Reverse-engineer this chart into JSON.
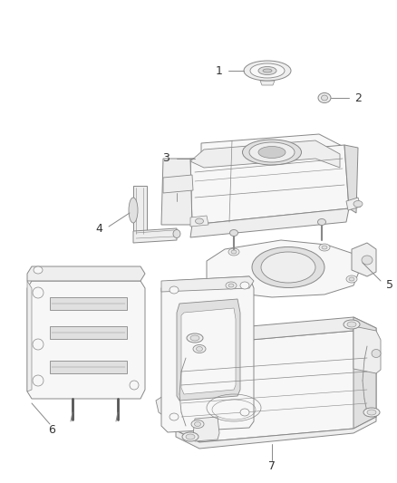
{
  "background_color": "#ffffff",
  "line_color": "#888888",
  "dark_line": "#555555",
  "label_color": "#333333",
  "fill_light": "#f7f7f7",
  "fill_mid": "#eeeeee",
  "fill_dark": "#e0e0e0",
  "figsize": [
    4.38,
    5.33
  ],
  "dpi": 100
}
